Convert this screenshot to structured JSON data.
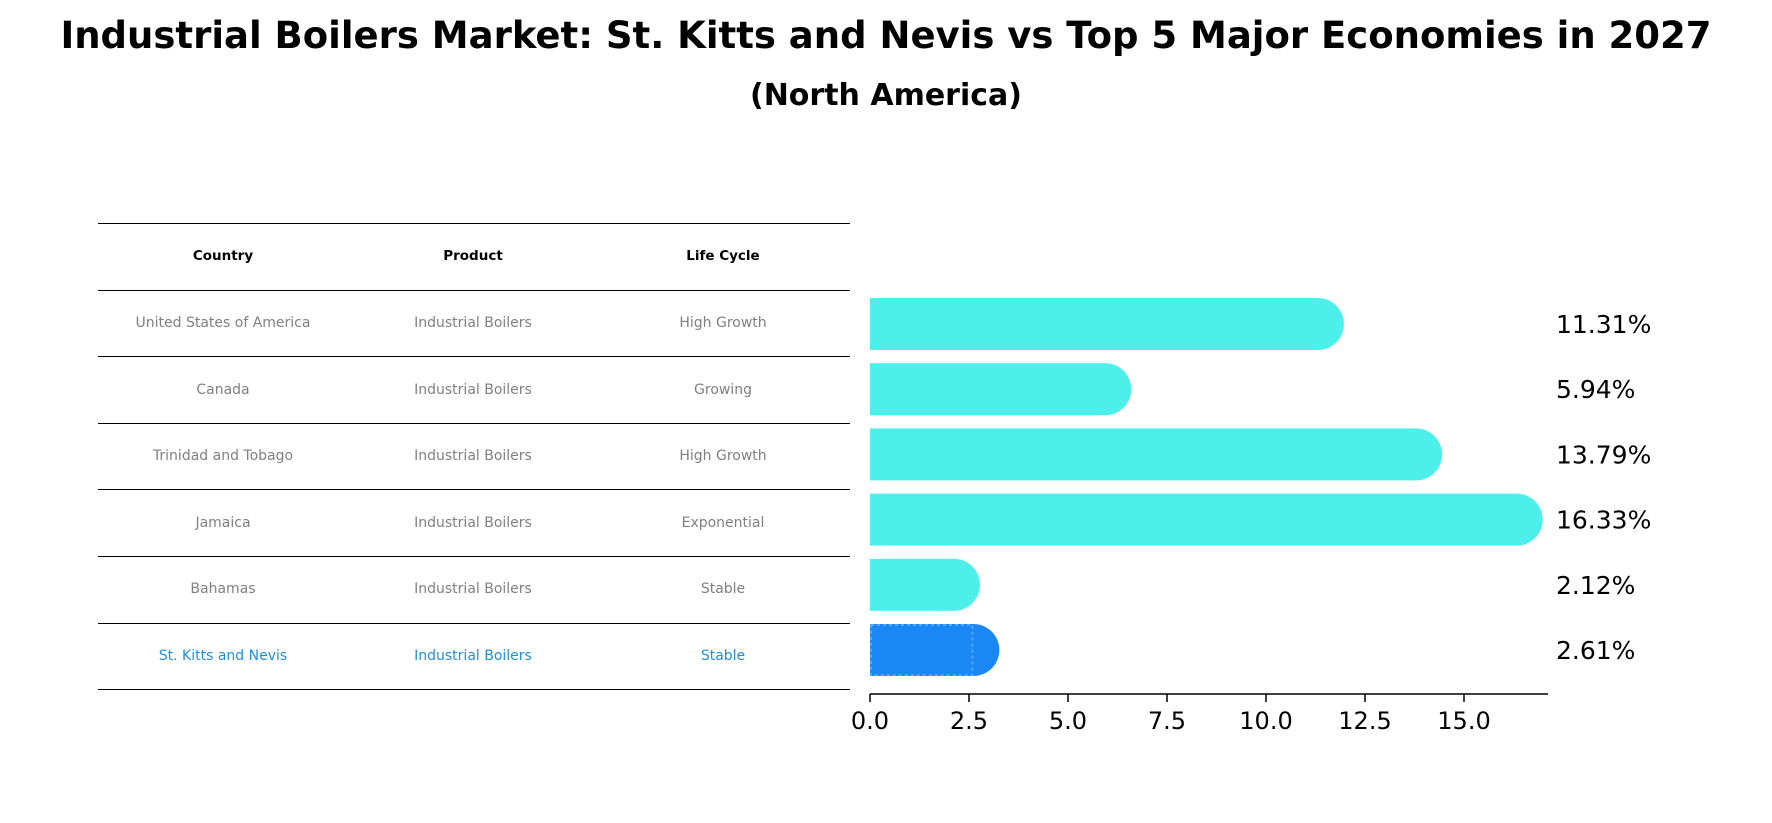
{
  "chart_data": {
    "type": "bar",
    "orientation": "horizontal",
    "title": "Industrial Boilers Market: St. Kitts and Nevis vs Top 5 Major Economies in 2027",
    "subtitle": "(North America)",
    "categories": [
      "United States of America",
      "Canada",
      "Trinidad and Tobago",
      "Jamaica",
      "Bahamas",
      "St. Kitts and Nevis"
    ],
    "values": [
      11.31,
      5.94,
      13.79,
      16.33,
      2.12,
      2.61
    ],
    "value_labels": [
      "11.31%",
      "5.94%",
      "13.79%",
      "16.33%",
      "2.12%",
      "2.61%"
    ],
    "highlight_index": 5,
    "xlim": [
      0,
      17.1
    ],
    "x_ticks": [
      0.0,
      2.5,
      5.0,
      7.5,
      10.0,
      12.5,
      15.0
    ],
    "x_tick_labels": [
      "0.0",
      "2.5",
      "5.0",
      "7.5",
      "10.0",
      "12.5",
      "15.0"
    ],
    "xlabel": "",
    "ylabel": "",
    "grid": false,
    "colors": {
      "bar": "#4cefea",
      "highlight": "#1a87f5",
      "text": "#000000"
    }
  },
  "table": {
    "headers": [
      "Country",
      "Product",
      "Life Cycle"
    ],
    "rows": [
      [
        "United States of America",
        "Industrial Boilers",
        "High Growth"
      ],
      [
        "Canada",
        "Industrial Boilers",
        "Growing"
      ],
      [
        "Trinidad and Tobago",
        "Industrial Boilers",
        "High Growth"
      ],
      [
        "Jamaica",
        "Industrial Boilers",
        "Exponential"
      ],
      [
        "Bahamas",
        "Industrial Boilers",
        "Stable"
      ],
      [
        "St. Kitts and Nevis",
        "Industrial Boilers",
        "Stable"
      ]
    ],
    "colors": {
      "header": "#000000",
      "row": "#808080",
      "highlight": "#1f8fde"
    }
  }
}
